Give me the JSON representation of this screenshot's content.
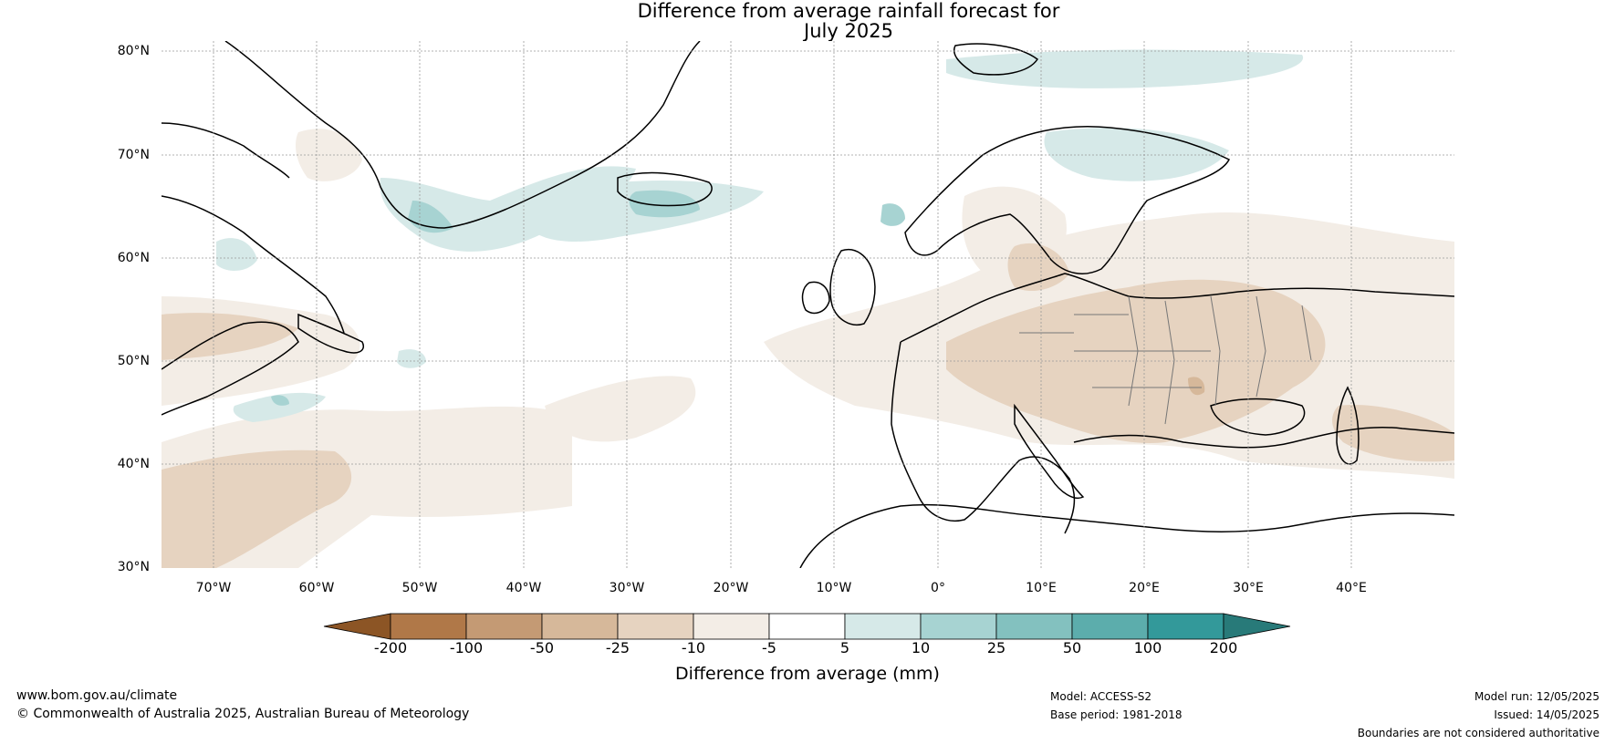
{
  "title_line1": "Difference from average rainfall forecast for",
  "title_line2": "July 2025",
  "map": {
    "region": "North Atlantic and Europe",
    "projection": "equirectangular",
    "lon_range": [
      -75,
      50
    ],
    "lat_range": [
      30,
      81
    ],
    "lat_labels": [
      "80°N",
      "70°N",
      "60°N",
      "50°N",
      "40°N",
      "30°N"
    ],
    "lon_labels": [
      "70°W",
      "60°W",
      "50°W",
      "40°W",
      "30°W",
      "20°W",
      "10°W",
      "0°",
      "10°E",
      "20°E",
      "30°E",
      "40°E"
    ],
    "lat_gridlines": [
      80,
      70,
      60,
      50,
      40
    ],
    "lon_gridlines": [
      -70,
      -60,
      -50,
      -40,
      -30,
      -20,
      -10,
      0,
      10,
      20,
      30,
      40
    ]
  },
  "colorbar": {
    "label": "Difference from average (mm)",
    "ticks": [
      "-200",
      "-100",
      "-50",
      "-25",
      "-10",
      "-5",
      "5",
      "10",
      "25",
      "50",
      "100",
      "200"
    ],
    "colors": [
      "#8c5525",
      "#b07848",
      "#c49a74",
      "#d6b89a",
      "#e6d3c0",
      "#f3ede6",
      "#ffffff",
      "#d6e9e8",
      "#a7d3d2",
      "#83c1bf",
      "#5cadac",
      "#33999a",
      "#287a79"
    ]
  },
  "footer": {
    "website": "www.bom.gov.au/climate",
    "copyright": "© Commonwealth of Australia 2025, Australian Bureau of Meteorology",
    "model": "Model: ACCESS-S2",
    "base_period": "Base period: 1981-2018",
    "model_run": "Model run: 12/05/2025",
    "issued": "Issued: 14/05/2025",
    "disclaimer": "Boundaries are not considered authoritative"
  }
}
